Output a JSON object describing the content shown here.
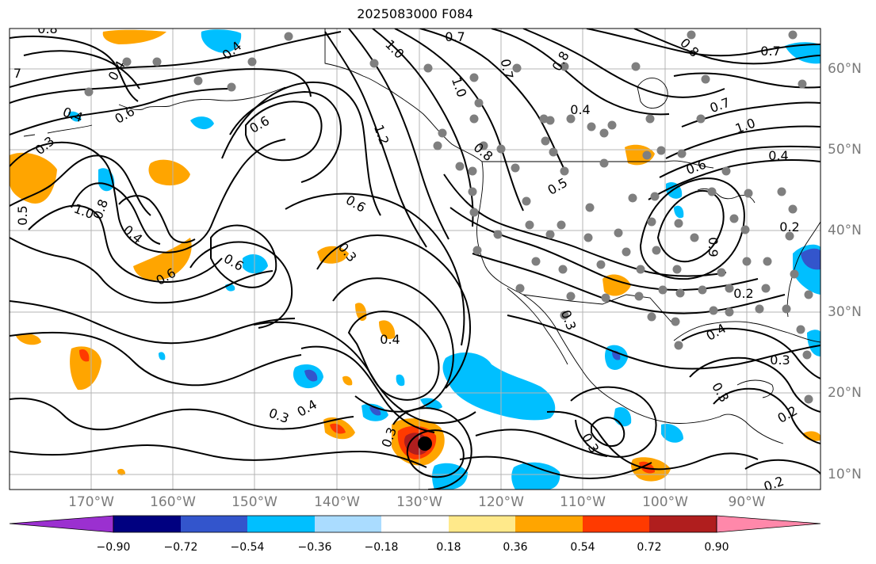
{
  "title": "2025083000 F084",
  "lon_labels": [
    "170°W",
    "160°W",
    "150°W",
    "140°W",
    "130°W",
    "120°W",
    "110°W",
    "100°W",
    "90°W"
  ],
  "lat_labels": [
    "60°N",
    "50°N",
    "40°N",
    "30°N",
    "20°N",
    "10°N"
  ],
  "colorbar": {
    "ticks": [
      "−0.90",
      "−0.72",
      "−0.54",
      "−0.36",
      "−0.18",
      "0.18",
      "0.36",
      "0.54",
      "0.72",
      "0.90"
    ],
    "colors": [
      "#9b30d0",
      "#000080",
      "#3355cc",
      "#00bfff",
      "#aadcff",
      "#ffffff",
      "#ffe98a",
      "#ffa500",
      "#ff3a00",
      "#b01e1e",
      "#ff88aa"
    ]
  },
  "contour_labels": [
    "0.8",
    "0.7",
    "1.0",
    "0.7",
    "0.8",
    "0.4",
    "7",
    "0.4",
    "0.6",
    "0.3",
    "0.4",
    "1.2",
    "1.0",
    "0.8",
    "0.4",
    "0.7",
    "0.8",
    "1.0",
    "0.4",
    "0.7",
    "1.0",
    "0.8",
    "0.4",
    "0.5",
    "0.6",
    "0.5",
    "0.2",
    "0.6",
    "0.6",
    "0.3",
    "0.6",
    "0.9",
    "0.6",
    "0.3",
    "0.2",
    "0.4",
    "0.3",
    "0.3",
    "0.4",
    "0.3",
    "0.3",
    "0.3",
    "0.2",
    "0.2"
  ],
  "colors": {
    "background": "#ffffff",
    "grid": "#b4b4b4",
    "contour": "#000000",
    "station_dot": "#7f7f7f",
    "axis_label": "#7a7a7a"
  }
}
